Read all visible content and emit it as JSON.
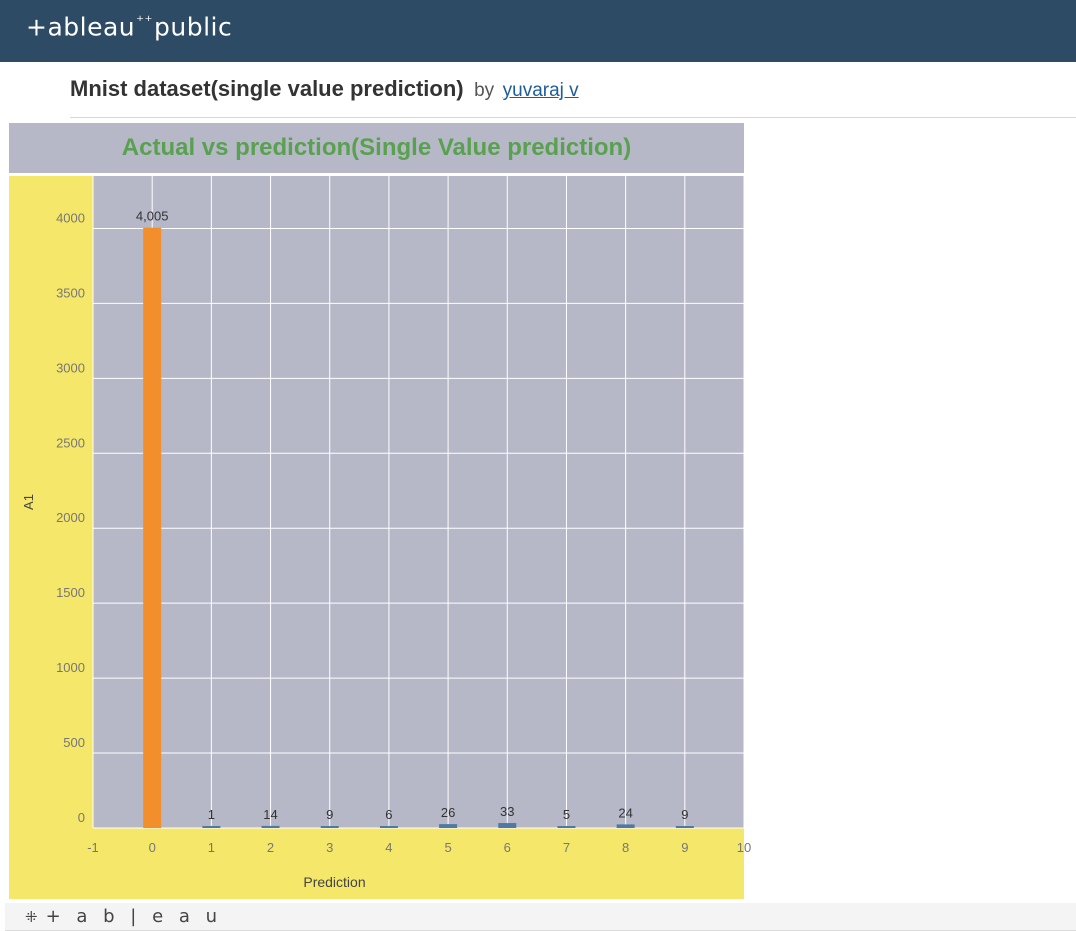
{
  "header": {
    "logo_text": "+ableau",
    "logo_spark": "⁺⁺",
    "logo_suffix": "public"
  },
  "viz": {
    "title": "Mnist dataset(single value prediction)",
    "by_label": "by",
    "author": "yuvaraj v"
  },
  "colors": {
    "header_bg": "#2d4b64",
    "plot_bg": "#b6b8c8",
    "axis_bg": "#f5e76a",
    "title_green": "#59a14f",
    "highlight_bar": "#f28e2b",
    "bar": "#4e79a7"
  },
  "footer": {
    "icon": "tableau-mark-icon",
    "logo_text": "+ a b | e a u"
  },
  "chart_data": {
    "type": "bar",
    "title": "Actual vs prediction(Single Value prediction)",
    "xlabel": "Prediction",
    "ylabel": "A1",
    "x": [
      0,
      1,
      2,
      3,
      4,
      5,
      6,
      7,
      8,
      9
    ],
    "values": [
      4005,
      1,
      14,
      9,
      6,
      26,
      33,
      5,
      24,
      9
    ],
    "data_labels": [
      "4,005",
      "1",
      "14",
      "9",
      "6",
      "26",
      "33",
      "5",
      "24",
      "9"
    ],
    "highlight_index": 0,
    "xlim": [
      -1,
      10
    ],
    "ylim": [
      0,
      4350
    ],
    "x_ticks": [
      -1,
      0,
      1,
      2,
      3,
      4,
      5,
      6,
      7,
      8,
      9,
      10
    ],
    "y_ticks": [
      0,
      500,
      1000,
      1500,
      2000,
      2500,
      3000,
      3500,
      4000
    ],
    "grid": true,
    "legend": "none"
  }
}
